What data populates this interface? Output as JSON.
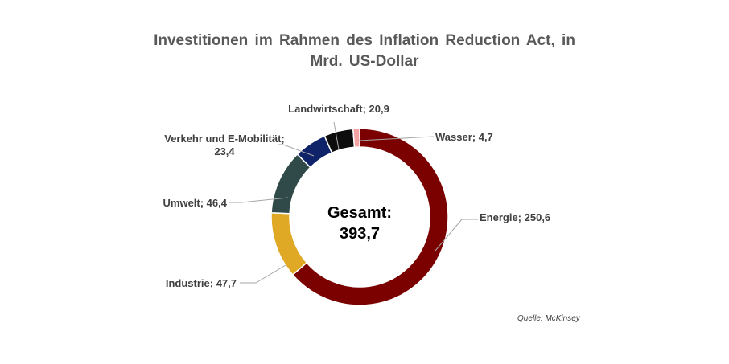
{
  "title": "Investitionen im Rahmen des Inflation Reduction Act, in Mrd. US-Dollar",
  "source": "Quelle: McKinsey",
  "center": {
    "line1": "Gesamt:",
    "line2": "393,7"
  },
  "chart_data": {
    "type": "pie",
    "variant": "donut",
    "title": "Investitionen im Rahmen des Inflation Reduction Act, in Mrd. US-Dollar",
    "total": 393.7,
    "series": [
      {
        "name": "Energie",
        "value": 250.6,
        "label": [
          "Energie; 250,6"
        ],
        "color": "#7b0000"
      },
      {
        "name": "Industrie",
        "value": 47.7,
        "label": [
          "Industrie; 47,7"
        ],
        "color": "#e0a925"
      },
      {
        "name": "Umwelt",
        "value": 46.4,
        "label": [
          "Umwelt; 46,4"
        ],
        "color": "#2f4a48"
      },
      {
        "name": "Verkehr und E-Mobilität",
        "value": 23.4,
        "label": [
          "Verkehr und E-Mobilität;",
          "23,4"
        ],
        "color": "#0f2468"
      },
      {
        "name": "Landwirtschaft",
        "value": 20.9,
        "label": [
          "Landwirtschaft; 20,9"
        ],
        "color": "#0d0d0d"
      },
      {
        "name": "Wasser",
        "value": 4.7,
        "label": [
          "Wasser; 4,7"
        ],
        "color": "#f4a3a3"
      }
    ]
  }
}
